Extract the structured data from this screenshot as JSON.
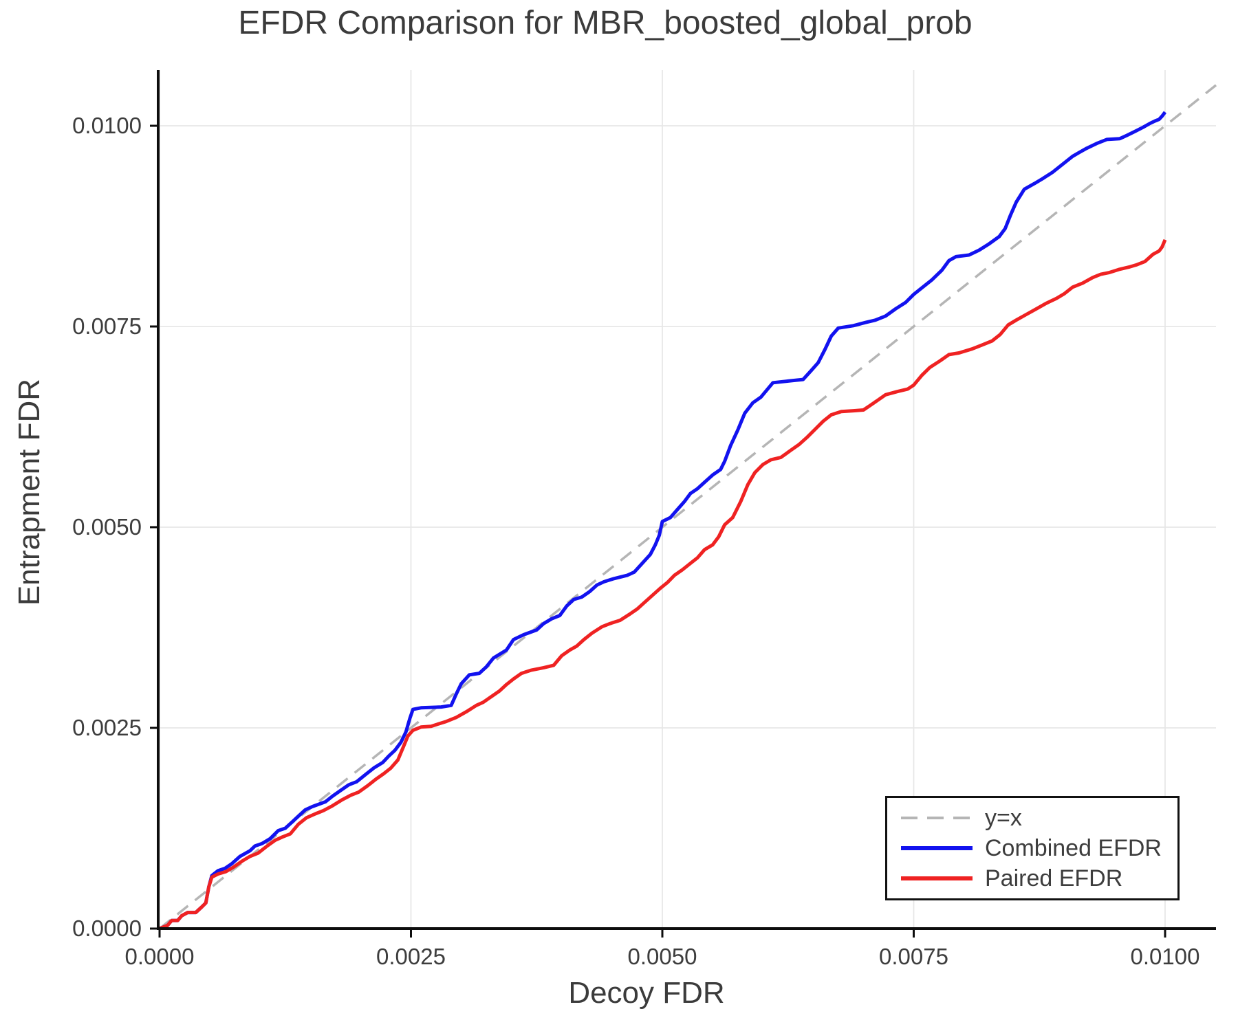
{
  "title": "EFDR Comparison for MBR_boosted_global_prob",
  "axes": {
    "xlabel": "Decoy FDR",
    "ylabel": "Entrapment FDR",
    "x_ticks": [
      {
        "value": 0.0,
        "label": "0.0000"
      },
      {
        "value": 0.0025,
        "label": "0.0025"
      },
      {
        "value": 0.005,
        "label": "0.0050"
      },
      {
        "value": 0.0075,
        "label": "0.0075"
      },
      {
        "value": 0.01,
        "label": "0.0100"
      }
    ],
    "y_ticks": [
      {
        "value": 0.0,
        "label": "0.0000"
      },
      {
        "value": 0.0025,
        "label": "0.0025"
      },
      {
        "value": 0.005,
        "label": "0.0050"
      },
      {
        "value": 0.0075,
        "label": "0.0075"
      },
      {
        "value": 0.01,
        "label": "0.0100"
      }
    ]
  },
  "legend": {
    "items": [
      {
        "label": "y=x",
        "color": "#b5b5b5",
        "style": "dashed"
      },
      {
        "label": "Combined EFDR",
        "color": "#1212ef",
        "style": "solid"
      },
      {
        "label": "Paired EFDR",
        "color": "#ef2222",
        "style": "solid"
      }
    ],
    "position": "lower right"
  },
  "colors": {
    "text": "#3d3d3d",
    "spine": "#0d0d0d",
    "grid": "#e7e7e7",
    "identity_line": "#b5b5b5",
    "combined": "#1212ef",
    "paired": "#ef2222",
    "background": "#ffffff"
  },
  "chart_data": {
    "type": "line",
    "title": "EFDR Comparison for MBR_boosted_global_prob",
    "xlabel": "Decoy FDR",
    "ylabel": "Entrapment FDR",
    "xlim": [
      0,
      0.0105
    ],
    "ylim": [
      0,
      0.0107
    ],
    "grid": true,
    "legend_position": "lower right",
    "series": [
      {
        "name": "y=x",
        "style": "dashed",
        "color": "#b5b5b5",
        "points": [
          [
            0,
            0
          ],
          [
            0.010506,
            0.010506
          ]
        ]
      },
      {
        "name": "Combined EFDR",
        "style": "solid",
        "color": "#1212ef",
        "points": [
          [
            0,
            0
          ],
          [
            8e-05,
            4e-05
          ],
          [
            0.00012,
            0.0001
          ],
          [
            0.00018,
            0.0001
          ],
          [
            0.00022,
            0.00016
          ],
          [
            0.00028,
            0.0002
          ],
          [
            0.00036,
            0.0002
          ],
          [
            0.00042,
            0.00027
          ],
          [
            0.00046,
            0.00032
          ],
          [
            0.00049,
            0.00052
          ],
          [
            0.00052,
            0.00066
          ],
          [
            0.00058,
            0.00072
          ],
          [
            0.00065,
            0.00075
          ],
          [
            0.00072,
            0.00081
          ],
          [
            0.0008,
            0.0009
          ],
          [
            0.0009,
            0.00097
          ],
          [
            0.00095,
            0.00103
          ],
          [
            0.00102,
            0.00106
          ],
          [
            0.0011,
            0.00112
          ],
          [
            0.00118,
            0.00122
          ],
          [
            0.00125,
            0.00125
          ],
          [
            0.00132,
            0.00133
          ],
          [
            0.00138,
            0.0014
          ],
          [
            0.00145,
            0.00148
          ],
          [
            0.00152,
            0.00152
          ],
          [
            0.00165,
            0.00158
          ],
          [
            0.00172,
            0.00165
          ],
          [
            0.0018,
            0.00172
          ],
          [
            0.00188,
            0.00179
          ],
          [
            0.00196,
            0.00183
          ],
          [
            0.00205,
            0.00192
          ],
          [
            0.00213,
            0.002
          ],
          [
            0.00222,
            0.00207
          ],
          [
            0.00228,
            0.00215
          ],
          [
            0.00234,
            0.00222
          ],
          [
            0.0024,
            0.00232
          ],
          [
            0.00245,
            0.00245
          ],
          [
            0.00249,
            0.00262
          ],
          [
            0.00252,
            0.00273
          ],
          [
            0.0026,
            0.00275
          ],
          [
            0.0028,
            0.00276
          ],
          [
            0.0029,
            0.00278
          ],
          [
            0.00295,
            0.00292
          ],
          [
            0.003,
            0.00305
          ],
          [
            0.00308,
            0.00316
          ],
          [
            0.00318,
            0.00318
          ],
          [
            0.00325,
            0.00326
          ],
          [
            0.00332,
            0.00337
          ],
          [
            0.00345,
            0.00347
          ],
          [
            0.00352,
            0.0036
          ],
          [
            0.00362,
            0.00366
          ],
          [
            0.00375,
            0.00372
          ],
          [
            0.00382,
            0.0038
          ],
          [
            0.0039,
            0.00386
          ],
          [
            0.00398,
            0.0039
          ],
          [
            0.00405,
            0.00402
          ],
          [
            0.00412,
            0.0041
          ],
          [
            0.0042,
            0.00413
          ],
          [
            0.00428,
            0.0042
          ],
          [
            0.00435,
            0.00428
          ],
          [
            0.00442,
            0.00432
          ],
          [
            0.00452,
            0.00436
          ],
          [
            0.00465,
            0.0044
          ],
          [
            0.00472,
            0.00444
          ],
          [
            0.0048,
            0.00455
          ],
          [
            0.00488,
            0.00466
          ],
          [
            0.00493,
            0.00478
          ],
          [
            0.00497,
            0.0049
          ],
          [
            0.005,
            0.00507
          ],
          [
            0.00508,
            0.00512
          ],
          [
            0.00515,
            0.00522
          ],
          [
            0.00522,
            0.00532
          ],
          [
            0.00528,
            0.00542
          ],
          [
            0.00535,
            0.00548
          ],
          [
            0.00542,
            0.00556
          ],
          [
            0.0055,
            0.00565
          ],
          [
            0.00558,
            0.00572
          ],
          [
            0.00562,
            0.00582
          ],
          [
            0.00568,
            0.00602
          ],
          [
            0.00575,
            0.00621
          ],
          [
            0.00582,
            0.00642
          ],
          [
            0.0059,
            0.00655
          ],
          [
            0.00598,
            0.00662
          ],
          [
            0.0061,
            0.0068
          ],
          [
            0.00625,
            0.00682
          ],
          [
            0.0064,
            0.00684
          ],
          [
            0.00648,
            0.00695
          ],
          [
            0.00655,
            0.00705
          ],
          [
            0.00662,
            0.00722
          ],
          [
            0.00668,
            0.00738
          ],
          [
            0.00675,
            0.00748
          ],
          [
            0.0069,
            0.00751
          ],
          [
            0.00702,
            0.00755
          ],
          [
            0.00712,
            0.00758
          ],
          [
            0.00722,
            0.00763
          ],
          [
            0.00732,
            0.00772
          ],
          [
            0.00742,
            0.0078
          ],
          [
            0.0075,
            0.0079
          ],
          [
            0.00758,
            0.00798
          ],
          [
            0.00768,
            0.00808
          ],
          [
            0.00778,
            0.0082
          ],
          [
            0.00785,
            0.00832
          ],
          [
            0.00792,
            0.00837
          ],
          [
            0.00805,
            0.00839
          ],
          [
            0.00815,
            0.00845
          ],
          [
            0.00825,
            0.00853
          ],
          [
            0.00835,
            0.00862
          ],
          [
            0.00841,
            0.00872
          ],
          [
            0.00846,
            0.00888
          ],
          [
            0.00852,
            0.00905
          ],
          [
            0.0086,
            0.00921
          ],
          [
            0.0087,
            0.00928
          ],
          [
            0.00878,
            0.00934
          ],
          [
            0.00888,
            0.00942
          ],
          [
            0.00898,
            0.00952
          ],
          [
            0.00908,
            0.00962
          ],
          [
            0.00915,
            0.00967
          ],
          [
            0.00922,
            0.00972
          ],
          [
            0.00932,
            0.00978
          ],
          [
            0.00942,
            0.00983
          ],
          [
            0.00955,
            0.00984
          ],
          [
            0.00962,
            0.00988
          ],
          [
            0.0097,
            0.00993
          ],
          [
            0.00978,
            0.00998
          ],
          [
            0.00985,
            0.01003
          ],
          [
            0.0099,
            0.01006
          ],
          [
            0.00994,
            0.01008
          ],
          [
            0.00997,
            0.01012
          ],
          [
            0.01,
            0.01017
          ]
        ]
      },
      {
        "name": "Paired EFDR",
        "style": "solid",
        "color": "#ef2222",
        "points": [
          [
            0,
            0
          ],
          [
            8e-05,
            4e-05
          ],
          [
            0.00012,
            0.0001
          ],
          [
            0.00018,
            0.0001
          ],
          [
            0.00022,
            0.00016
          ],
          [
            0.00028,
            0.0002
          ],
          [
            0.00036,
            0.0002
          ],
          [
            0.00042,
            0.00027
          ],
          [
            0.00046,
            0.00032
          ],
          [
            0.00049,
            0.00052
          ],
          [
            0.00052,
            0.00064
          ],
          [
            0.00058,
            0.00068
          ],
          [
            0.00066,
            0.00071
          ],
          [
            0.00074,
            0.00077
          ],
          [
            0.00082,
            0.00084
          ],
          [
            0.0009,
            0.0009
          ],
          [
            0.00098,
            0.00094
          ],
          [
            0.00106,
            0.00102
          ],
          [
            0.00115,
            0.0011
          ],
          [
            0.00122,
            0.00114
          ],
          [
            0.0013,
            0.00118
          ],
          [
            0.00138,
            0.0013
          ],
          [
            0.00146,
            0.00138
          ],
          [
            0.00155,
            0.00143
          ],
          [
            0.00163,
            0.00147
          ],
          [
            0.00172,
            0.00153
          ],
          [
            0.00181,
            0.0016
          ],
          [
            0.0019,
            0.00166
          ],
          [
            0.00198,
            0.0017
          ],
          [
            0.00207,
            0.00178
          ],
          [
            0.00215,
            0.00186
          ],
          [
            0.00223,
            0.00193
          ],
          [
            0.0023,
            0.002
          ],
          [
            0.00237,
            0.0021
          ],
          [
            0.00243,
            0.00228
          ],
          [
            0.00247,
            0.0024
          ],
          [
            0.00252,
            0.00247
          ],
          [
            0.0026,
            0.00251
          ],
          [
            0.0027,
            0.00252
          ],
          [
            0.00285,
            0.00258
          ],
          [
            0.00295,
            0.00263
          ],
          [
            0.00305,
            0.0027
          ],
          [
            0.00315,
            0.00278
          ],
          [
            0.00322,
            0.00282
          ],
          [
            0.0033,
            0.00289
          ],
          [
            0.00338,
            0.00296
          ],
          [
            0.00345,
            0.00304
          ],
          [
            0.00352,
            0.00311
          ],
          [
            0.0036,
            0.00318
          ],
          [
            0.0037,
            0.00322
          ],
          [
            0.00382,
            0.00325
          ],
          [
            0.00392,
            0.00328
          ],
          [
            0.004,
            0.0034
          ],
          [
            0.00408,
            0.00347
          ],
          [
            0.00415,
            0.00352
          ],
          [
            0.00422,
            0.0036
          ],
          [
            0.0043,
            0.00368
          ],
          [
            0.0044,
            0.00376
          ],
          [
            0.00448,
            0.0038
          ],
          [
            0.00458,
            0.00384
          ],
          [
            0.00468,
            0.00392
          ],
          [
            0.00475,
            0.00398
          ],
          [
            0.00482,
            0.00406
          ],
          [
            0.0049,
            0.00415
          ],
          [
            0.00498,
            0.00424
          ],
          [
            0.00505,
            0.00431
          ],
          [
            0.00512,
            0.0044
          ],
          [
            0.0052,
            0.00447
          ],
          [
            0.00528,
            0.00455
          ],
          [
            0.00535,
            0.00462
          ],
          [
            0.00542,
            0.00472
          ],
          [
            0.0055,
            0.00478
          ],
          [
            0.00556,
            0.00488
          ],
          [
            0.00562,
            0.00503
          ],
          [
            0.0057,
            0.00512
          ],
          [
            0.00578,
            0.00532
          ],
          [
            0.00585,
            0.00553
          ],
          [
            0.00592,
            0.00568
          ],
          [
            0.006,
            0.00578
          ],
          [
            0.00608,
            0.00584
          ],
          [
            0.00618,
            0.00587
          ],
          [
            0.00628,
            0.00596
          ],
          [
            0.00636,
            0.00603
          ],
          [
            0.00644,
            0.00612
          ],
          [
            0.00652,
            0.00622
          ],
          [
            0.0066,
            0.00632
          ],
          [
            0.00668,
            0.0064
          ],
          [
            0.00678,
            0.00644
          ],
          [
            0.0069,
            0.00645
          ],
          [
            0.007,
            0.00646
          ],
          [
            0.00706,
            0.00651
          ],
          [
            0.00714,
            0.00658
          ],
          [
            0.00722,
            0.00665
          ],
          [
            0.00734,
            0.00669
          ],
          [
            0.00744,
            0.00672
          ],
          [
            0.0075,
            0.00677
          ],
          [
            0.00758,
            0.00689
          ],
          [
            0.00766,
            0.00699
          ],
          [
            0.00776,
            0.00707
          ],
          [
            0.00785,
            0.00715
          ],
          [
            0.00795,
            0.00717
          ],
          [
            0.00808,
            0.00722
          ],
          [
            0.00818,
            0.00727
          ],
          [
            0.00828,
            0.00732
          ],
          [
            0.00836,
            0.0074
          ],
          [
            0.00844,
            0.00752
          ],
          [
            0.00852,
            0.00758
          ],
          [
            0.00862,
            0.00765
          ],
          [
            0.00872,
            0.00772
          ],
          [
            0.00882,
            0.00779
          ],
          [
            0.00892,
            0.00785
          ],
          [
            0.009,
            0.00791
          ],
          [
            0.00908,
            0.00799
          ],
          [
            0.00918,
            0.00804
          ],
          [
            0.00928,
            0.00811
          ],
          [
            0.00936,
            0.00815
          ],
          [
            0.00944,
            0.00817
          ],
          [
            0.00954,
            0.00821
          ],
          [
            0.00964,
            0.00824
          ],
          [
            0.00972,
            0.00827
          ],
          [
            0.0098,
            0.00831
          ],
          [
            0.00988,
            0.0084
          ],
          [
            0.00994,
            0.00844
          ],
          [
            0.00997,
            0.00849
          ],
          [
            0.01,
            0.00858
          ]
        ]
      }
    ]
  }
}
